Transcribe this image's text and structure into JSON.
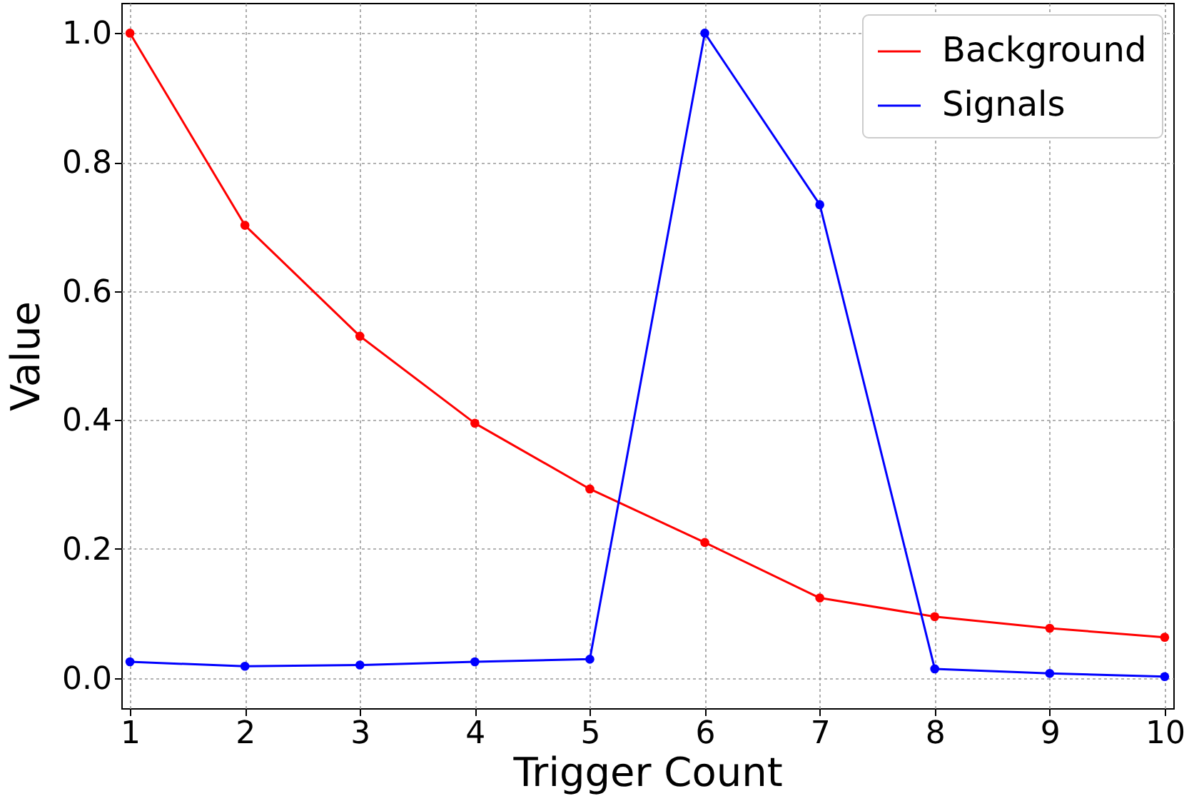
{
  "chart_data": {
    "type": "line",
    "xlabel": "Trigger Count",
    "ylabel": "Value",
    "x": [
      1,
      2,
      3,
      4,
      5,
      6,
      7,
      8,
      9,
      10
    ],
    "series": [
      {
        "name": "Background",
        "color": "#ff0000",
        "values": [
          1.0,
          0.702,
          0.53,
          0.395,
          0.293,
          0.21,
          0.124,
          0.095,
          0.077,
          0.063
        ]
      },
      {
        "name": "Signals",
        "color": "#0000ff",
        "values": [
          0.025,
          0.018,
          0.02,
          0.025,
          0.029,
          1.0,
          0.734,
          0.014,
          0.007,
          0.002
        ]
      }
    ],
    "xlim": [
      0.925,
      10.075
    ],
    "xticks": [
      1,
      2,
      3,
      4,
      5,
      6,
      7,
      8,
      9,
      10
    ],
    "ylim": [
      -0.047,
      1.047
    ],
    "yticks": [
      {
        "value": 0,
        "label": "0.0"
      },
      0.2,
      0.4,
      0.6,
      0.8,
      {
        "value": 1,
        "label": "1.0"
      }
    ],
    "grid": true,
    "legend": "top right",
    "marker": "circle",
    "line_style": "solid"
  }
}
